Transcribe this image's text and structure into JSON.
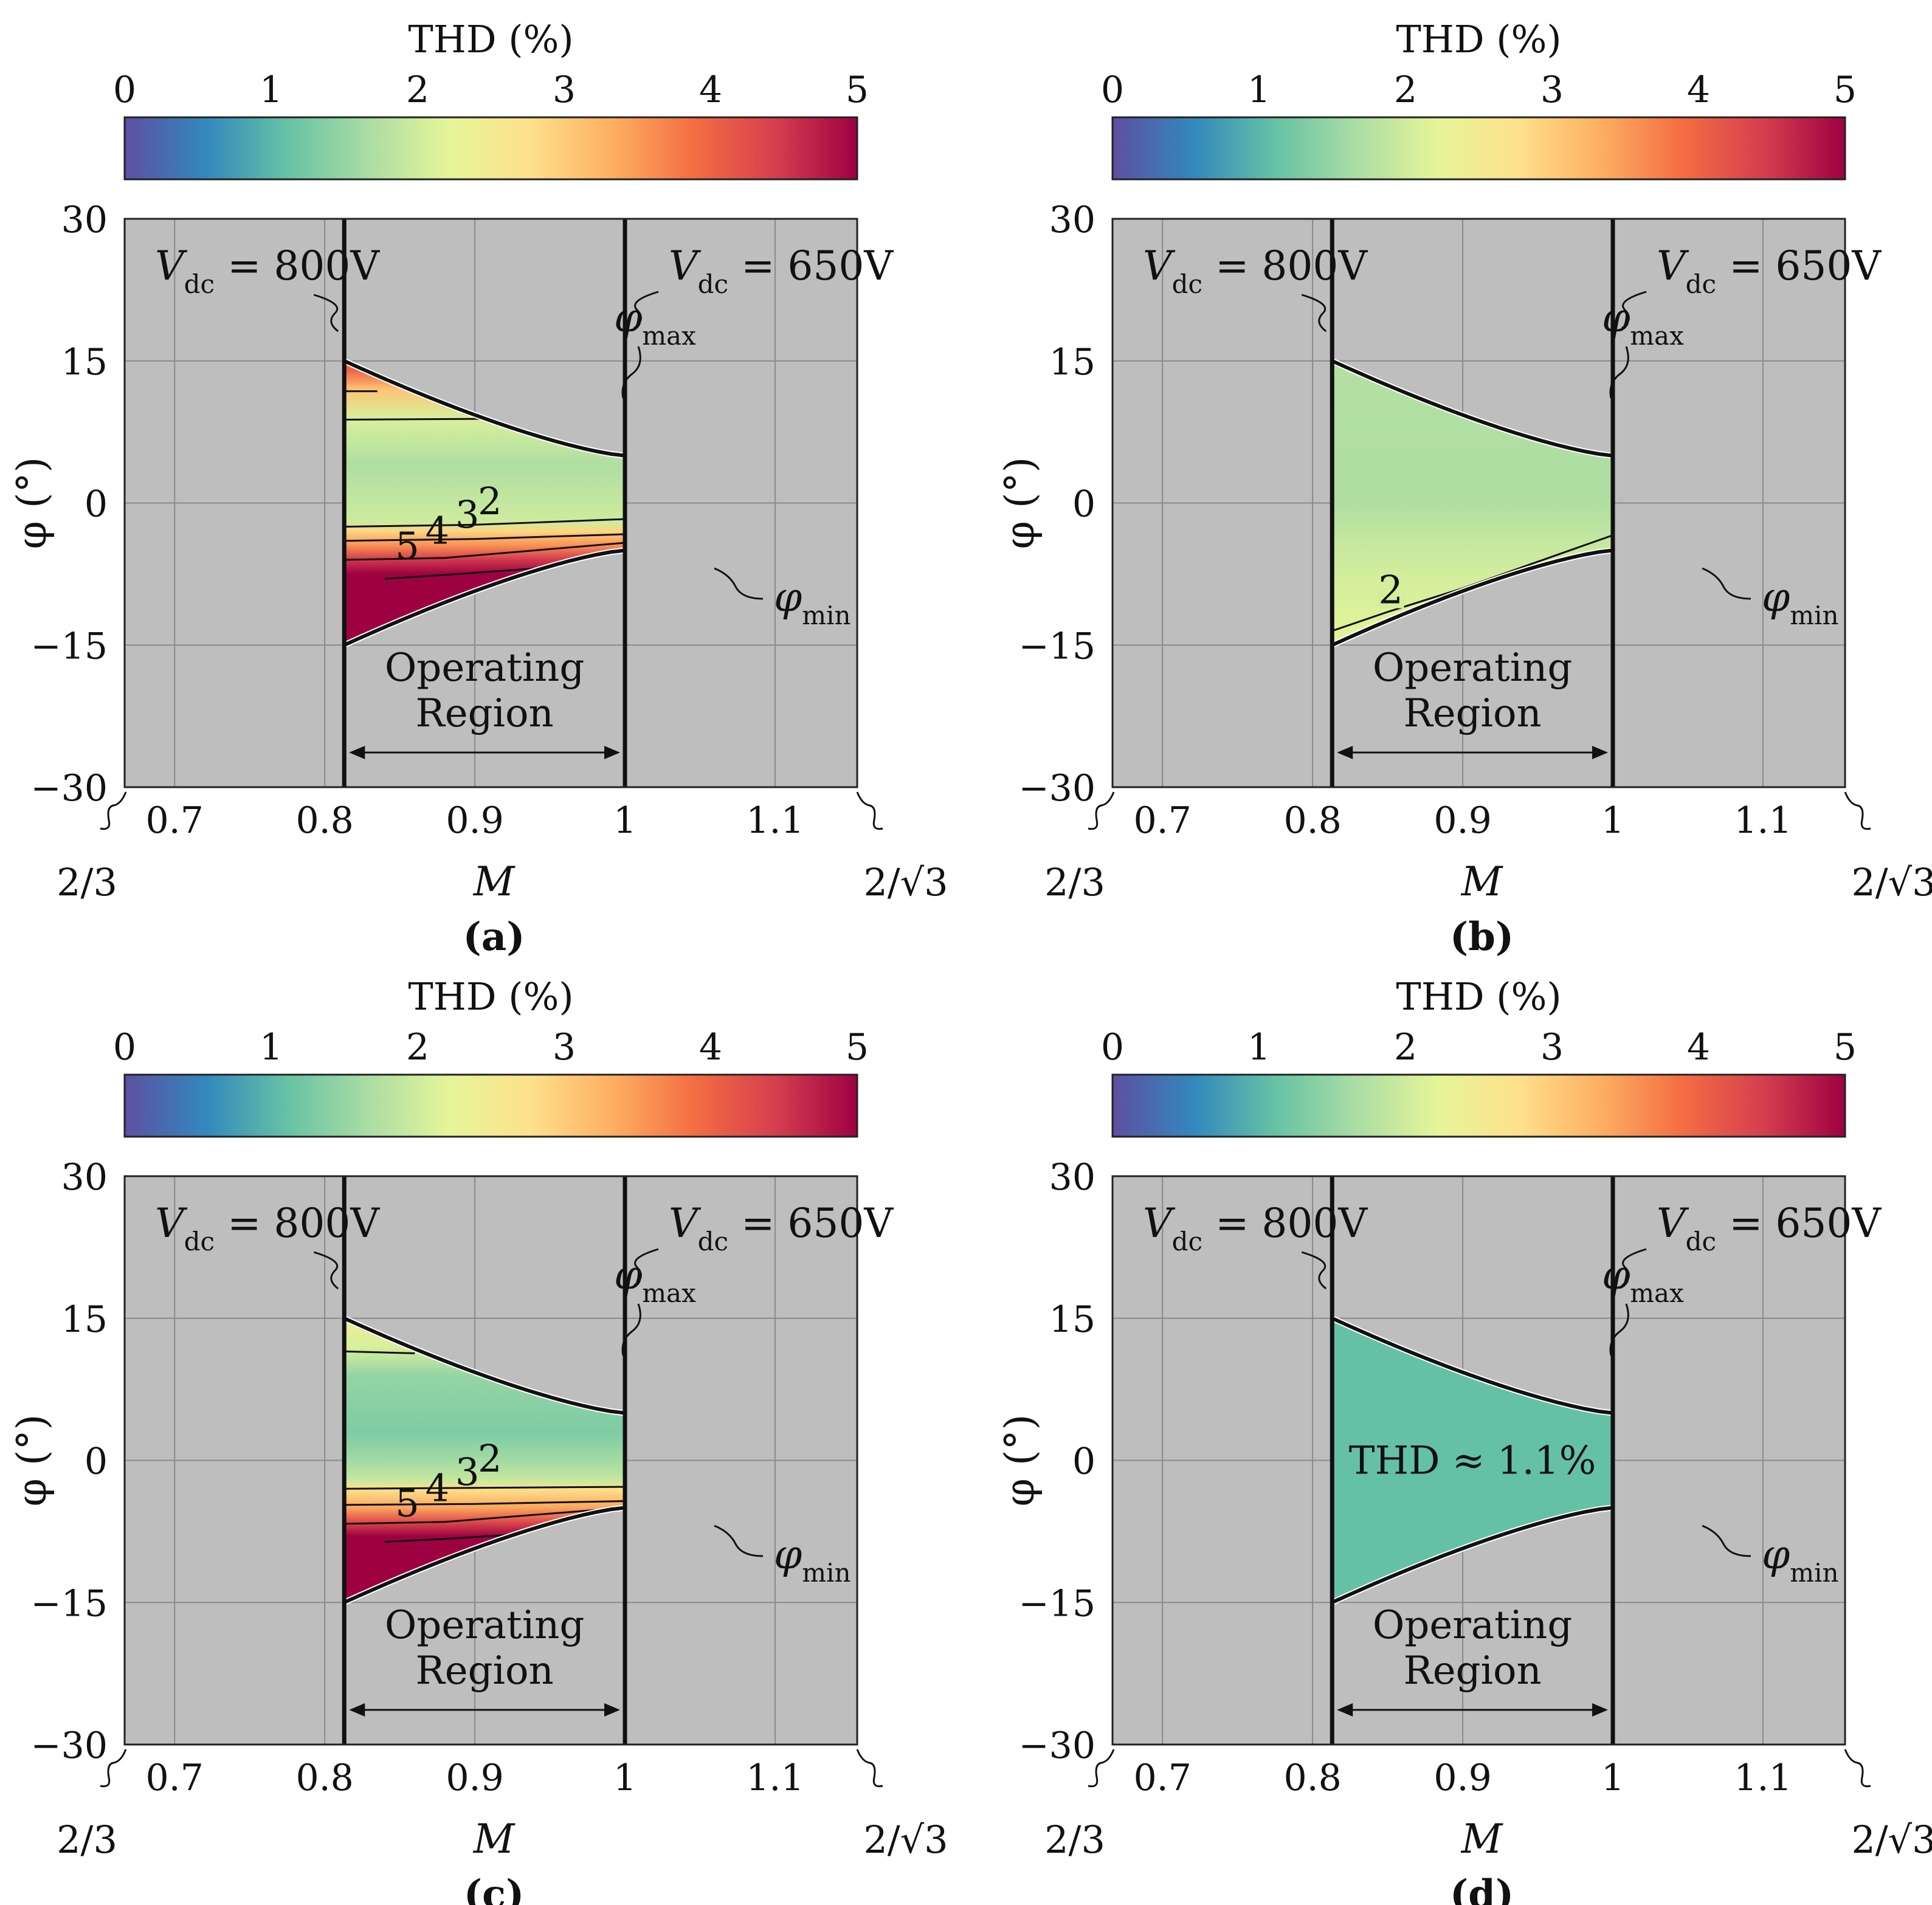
{
  "colorbar": {
    "title": "THD (%)",
    "ticks": [
      "0",
      "1",
      "2",
      "3",
      "4",
      "5"
    ],
    "range": [
      0,
      5
    ],
    "colors": [
      "#5e4fa2",
      "#3288bd",
      "#66c2a5",
      "#abdda4",
      "#e6f598",
      "#fee08b",
      "#fdae61",
      "#f46d43",
      "#d53e4f",
      "#9e0142"
    ]
  },
  "axes": {
    "xlabel": "M",
    "ylabel": "φ (°)",
    "xlim": [
      0.6667,
      1.1547
    ],
    "ylim": [
      -30,
      30
    ],
    "xticks": [
      0.7,
      0.8,
      0.9,
      1.0,
      1.1
    ],
    "xtick_labels": [
      "0.7",
      "0.8",
      "0.9",
      "1",
      "1.1"
    ],
    "yticks": [
      30,
      15,
      0,
      -15,
      -30
    ],
    "ytick_labels": [
      "30",
      "15",
      "0",
      "−15",
      "−30"
    ],
    "x_left_edge_label": "2/3",
    "x_right_edge_label": "2/√3"
  },
  "annotations": {
    "vdc_left": {
      "sym": "V",
      "sub": "dc",
      "rest": " = 800V"
    },
    "vdc_right": {
      "sym": "V",
      "sub": "dc",
      "rest": " = 650V"
    },
    "phi_max": {
      "sym": "φ",
      "sub": "max"
    },
    "phi_min": {
      "sym": "φ",
      "sub": "min"
    },
    "region_line1": "Operating",
    "region_line2": "Region"
  },
  "chart_data": [
    {
      "type": "heatmap",
      "panel_label": "(a)",
      "title": "THD (%)",
      "xlabel": "M",
      "ylabel": "φ (°)",
      "xlim": [
        0.6667,
        1.1547
      ],
      "ylim": [
        -30,
        30
      ],
      "operating_region": {
        "M_min": 0.813,
        "M_max": 1.0,
        "phi_max_at_M_min": 15,
        "phi_max_at_M_max": 5,
        "phi_min_at_M_min": -15,
        "phi_min_at_M_max": -5
      },
      "thd_profile": [
        [
          14,
          4.0
        ],
        [
          12,
          3.1
        ],
        [
          9,
          2.1
        ],
        [
          4,
          1.7
        ],
        [
          0,
          1.9
        ],
        [
          -2,
          2.0
        ],
        [
          -3,
          2.9
        ],
        [
          -4.5,
          3.6
        ],
        [
          -6,
          4.5
        ],
        [
          -7.5,
          5.0
        ],
        [
          -15,
          5.0
        ]
      ],
      "contour_labels": [
        "2",
        "3",
        "4",
        "5"
      ],
      "contours": [
        {
          "level": 2,
          "points": [
            [
              0.813,
              -2.5
            ],
            [
              0.9,
              -2.3
            ],
            [
              1.0,
              -1.7
            ]
          ]
        },
        {
          "level": 3,
          "points": [
            [
              0.813,
              -4.0
            ],
            [
              0.9,
              -3.8
            ],
            [
              1.0,
              -3.3
            ]
          ]
        },
        {
          "level": 4,
          "points": [
            [
              0.813,
              -6.0
            ],
            [
              0.88,
              -5.8
            ],
            [
              1.0,
              -4.2
            ]
          ]
        },
        {
          "level": 5,
          "points": [
            [
              0.84,
              -8.0
            ],
            [
              0.88,
              -7.6
            ],
            [
              0.95,
              -6.8
            ]
          ]
        },
        {
          "level": 3,
          "points": [
            [
              0.813,
              8.8
            ],
            [
              0.92,
              8.9
            ]
          ]
        },
        {
          "level": 4,
          "points": [
            [
              0.813,
              11.8
            ],
            [
              0.835,
              11.8
            ]
          ]
        }
      ],
      "annotation": ""
    },
    {
      "type": "heatmap",
      "panel_label": "(b)",
      "title": "THD (%)",
      "xlabel": "M",
      "ylabel": "φ (°)",
      "xlim": [
        0.6667,
        1.1547
      ],
      "ylim": [
        -30,
        30
      ],
      "operating_region": {
        "M_min": 0.813,
        "M_max": 1.0,
        "phi_max_at_M_min": 15,
        "phi_max_at_M_max": 5,
        "phi_min_at_M_min": -15,
        "phi_min_at_M_max": -5
      },
      "thd_profile": [
        [
          15,
          1.75
        ],
        [
          5,
          1.7
        ],
        [
          0,
          1.7
        ],
        [
          -4,
          1.9
        ],
        [
          -8,
          2.05
        ],
        [
          -15,
          2.2
        ]
      ],
      "contour_labels": [
        "2"
      ],
      "contours": [
        {
          "level": 2,
          "points": [
            [
              0.813,
              -13.5
            ],
            [
              0.85,
              -11.5
            ],
            [
              0.9,
              -9.0
            ],
            [
              0.95,
              -6.2
            ],
            [
              1.0,
              -3.4
            ]
          ]
        }
      ],
      "annotation": ""
    },
    {
      "type": "heatmap",
      "panel_label": "(c)",
      "title": "THD (%)",
      "xlabel": "M",
      "ylabel": "φ (°)",
      "xlim": [
        0.6667,
        1.1547
      ],
      "ylim": [
        -30,
        30
      ],
      "operating_region": {
        "M_min": 0.813,
        "M_max": 1.0,
        "phi_max_at_M_min": 15,
        "phi_max_at_M_max": 5,
        "phi_min_at_M_min": -15,
        "phi_min_at_M_max": -5
      },
      "thd_profile": [
        [
          15,
          2.5
        ],
        [
          12,
          2.1
        ],
        [
          9,
          1.5
        ],
        [
          3,
          1.3
        ],
        [
          0,
          1.6
        ],
        [
          -2,
          1.9
        ],
        [
          -3,
          2.7
        ],
        [
          -5,
          3.4
        ],
        [
          -6.5,
          4.3
        ],
        [
          -8,
          5.0
        ],
        [
          -15,
          5.0
        ]
      ],
      "contour_labels": [
        "2",
        "3",
        "4",
        "5"
      ],
      "contours": [
        {
          "level": 2,
          "points": [
            [
              0.813,
              -3.0
            ],
            [
              0.9,
              -2.9
            ],
            [
              1.0,
              -2.8
            ]
          ]
        },
        {
          "level": 3,
          "points": [
            [
              0.813,
              -4.7
            ],
            [
              0.9,
              -4.6
            ],
            [
              1.0,
              -4.3
            ]
          ]
        },
        {
          "level": 4,
          "points": [
            [
              0.813,
              -6.7
            ],
            [
              0.88,
              -6.5
            ],
            [
              1.0,
              -5.0
            ]
          ]
        },
        {
          "level": 5,
          "points": [
            [
              0.84,
              -8.6
            ],
            [
              0.88,
              -8.3
            ],
            [
              0.95,
              -7.6
            ]
          ]
        },
        {
          "level": 2,
          "points": [
            [
              0.813,
              11.5
            ],
            [
              0.86,
              11.3
            ]
          ]
        }
      ],
      "annotation": ""
    },
    {
      "type": "heatmap",
      "panel_label": "(d)",
      "title": "THD (%)",
      "xlabel": "M",
      "ylabel": "φ (°)",
      "xlim": [
        0.6667,
        1.1547
      ],
      "ylim": [
        -30,
        30
      ],
      "operating_region": {
        "M_min": 0.813,
        "M_max": 1.0,
        "phi_max_at_M_min": 15,
        "phi_max_at_M_max": 5,
        "phi_min_at_M_min": -15,
        "phi_min_at_M_max": -5
      },
      "thd_profile": [
        [
          15,
          1.1
        ],
        [
          -15,
          1.1
        ]
      ],
      "contour_labels": [],
      "contours": [],
      "annotation": "THD ≈ 1.1%"
    }
  ]
}
